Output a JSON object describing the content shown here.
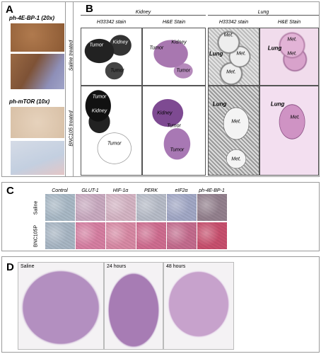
{
  "panel_a": {
    "label": "A",
    "captions": [
      "ph-4E-BP-1 (20x)",
      "ph-mTOR (10x)"
    ]
  },
  "panel_b": {
    "label": "B",
    "groups": [
      "Kidney",
      "Lung"
    ],
    "columns": [
      "H33342 stain",
      "H&E Stain",
      "H33342 stain",
      "H&E Stain"
    ],
    "rows": [
      "Saline treated",
      "BNC105 treated"
    ],
    "image_labels": [
      [
        [
          "Tumor",
          "Kidney",
          "Tumor"
        ],
        [
          "Tumor",
          "Kidney",
          "Tumor"
        ],
        [
          "Met.",
          "Lung",
          "Met.",
          "Met."
        ],
        [
          "Lung",
          "Met.",
          "Met."
        ]
      ],
      [
        [
          "Tumor",
          "Kidney",
          "Tumor"
        ],
        [
          "Kidney",
          "Tumor",
          "Tumor"
        ],
        [
          "Lung",
          "Met.",
          "Met."
        ],
        [
          "Lung",
          "Met."
        ]
      ]
    ]
  },
  "panel_c": {
    "label": "C",
    "columns": [
      "Control",
      "GLUT-1",
      "HIF-1α",
      "PERK",
      "eIF2α",
      "ph-4E-BP-1"
    ],
    "rows": [
      "Saline",
      "BNC105P"
    ]
  },
  "panel_d": {
    "label": "D",
    "images": [
      "Saline",
      "24 hours",
      "48 hours"
    ]
  }
}
